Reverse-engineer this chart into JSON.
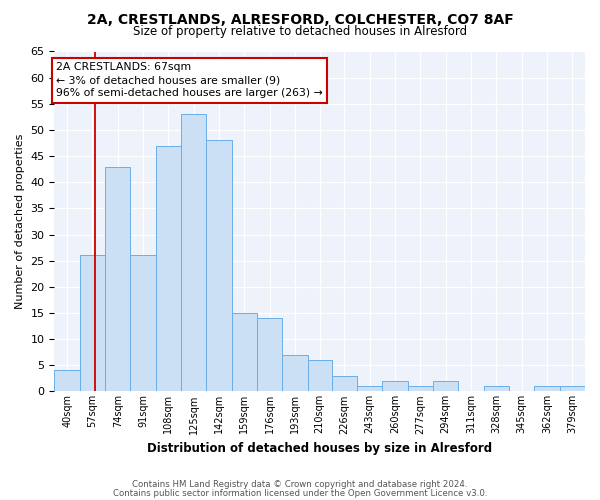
{
  "title1": "2A, CRESTLANDS, ALRESFORD, COLCHESTER, CO7 8AF",
  "title2": "Size of property relative to detached houses in Alresford",
  "xlabel": "Distribution of detached houses by size in Alresford",
  "ylabel": "Number of detached properties",
  "footer1": "Contains HM Land Registry data © Crown copyright and database right 2024.",
  "footer2": "Contains public sector information licensed under the Open Government Licence v3.0.",
  "bin_labels": [
    "40sqm",
    "57sqm",
    "74sqm",
    "91sqm",
    "108sqm",
    "125sqm",
    "142sqm",
    "159sqm",
    "176sqm",
    "193sqm",
    "210sqm",
    "226sqm",
    "243sqm",
    "260sqm",
    "277sqm",
    "294sqm",
    "311sqm",
    "328sqm",
    "345sqm",
    "362sqm",
    "379sqm"
  ],
  "bar_values": [
    4,
    26,
    43,
    26,
    47,
    53,
    48,
    15,
    14,
    7,
    6,
    3,
    1,
    2,
    1,
    2,
    0,
    1,
    0,
    1,
    1
  ],
  "bar_color": "#cce0f5",
  "bar_edge_color": "#6aaee8",
  "annotation_text": "2A CRESTLANDS: 67sqm\n← 3% of detached houses are smaller (9)\n96% of semi-detached houses are larger (263) →",
  "annotation_box_color": "white",
  "annotation_box_edge_color": "#cc0000",
  "property_line_color": "#cc0000",
  "ylim": [
    0,
    65
  ],
  "yticks": [
    0,
    5,
    10,
    15,
    20,
    25,
    30,
    35,
    40,
    45,
    50,
    55,
    60,
    65
  ],
  "bin_edges": [
    40,
    57,
    74,
    91,
    108,
    125,
    142,
    159,
    176,
    193,
    210,
    226,
    243,
    260,
    277,
    294,
    311,
    328,
    345,
    362,
    379,
    396
  ],
  "n_bins": 21
}
